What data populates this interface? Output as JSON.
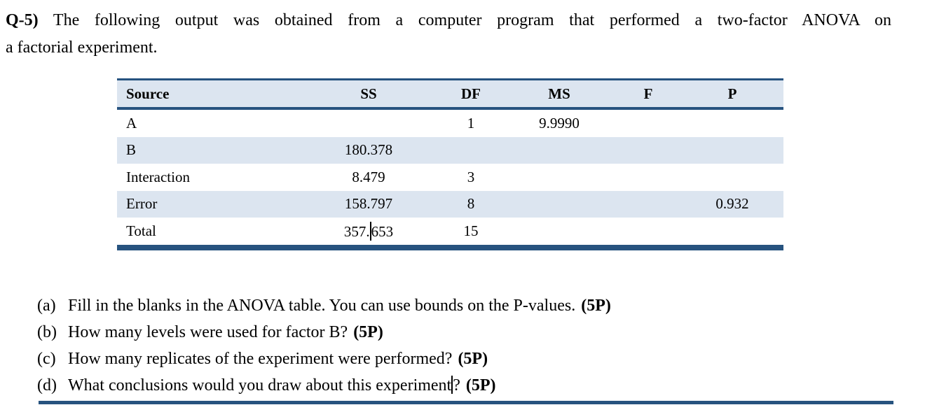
{
  "colors": {
    "accent_dark_navy": "#27537F",
    "band_light_blue": "#DCE5F0",
    "text": "#000000"
  },
  "intro": {
    "label": "Q-5)",
    "line1_rest": "The following output was obtained from a computer program that performed a two-factor ANOVA on",
    "line2": "a factorial experiment."
  },
  "table": {
    "columns": [
      "Source",
      "SS",
      "DF",
      "MS",
      "F",
      "P"
    ],
    "rows": [
      {
        "cells": [
          "A",
          "",
          "1",
          "9.9990",
          "",
          ""
        ]
      },
      {
        "cells": [
          "B",
          "180.378",
          "",
          "",
          "",
          ""
        ]
      },
      {
        "cells": [
          "Interaction",
          "8.479",
          "3",
          "",
          "",
          ""
        ]
      },
      {
        "cells": [
          "Error",
          "158.797",
          "8",
          "",
          "",
          "0.932"
        ]
      },
      {
        "cells": [
          "Total",
          "357.653",
          "15",
          "",
          "",
          ""
        ],
        "ss_before_caret": "357.",
        "ss_after_caret": "653"
      }
    ]
  },
  "questions": [
    {
      "marker": "(a)",
      "text": "Fill in the blanks in the ANOVA table. You can use bounds on the P-values.",
      "points": "(5P)"
    },
    {
      "marker": "(b)",
      "text": "How many levels were used for factor B?",
      "points": "(5P)"
    },
    {
      "marker": "(c)",
      "text": "How many replicates of the experiment were performed?",
      "points": "(5P)"
    },
    {
      "marker": "(d)",
      "text": "What conclusions would you draw about this experiment",
      "suffix": "?",
      "points": "(5P)"
    }
  ]
}
